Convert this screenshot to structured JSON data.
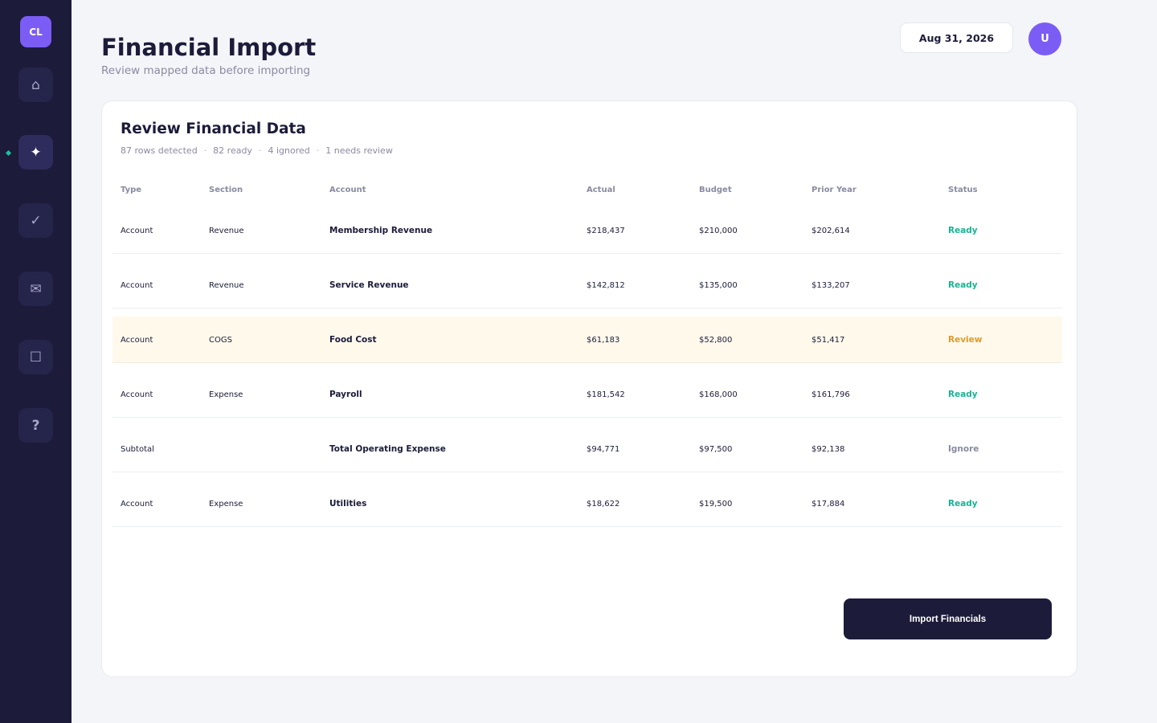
{
  "sidebar": {
    "logo_text": "CL",
    "items": [
      {
        "name": "home",
        "icon": "home-icon",
        "glyph": "⌂",
        "active": false
      },
      {
        "name": "import",
        "icon": "sparkle-icon",
        "glyph": "✦",
        "active": true
      },
      {
        "name": "tasks",
        "icon": "check-icon",
        "glyph": "✓",
        "active": false
      },
      {
        "name": "messages",
        "icon": "mail-icon",
        "glyph": "✉",
        "active": false
      },
      {
        "name": "documents",
        "icon": "square-icon",
        "glyph": "☐",
        "active": false
      },
      {
        "name": "help",
        "icon": "help-icon",
        "glyph": "?",
        "active": false
      }
    ]
  },
  "header": {
    "title": "Financial Import",
    "subtitle": "Review mapped data before importing",
    "date": "Aug 31, 2026",
    "avatar_initial": "U"
  },
  "card": {
    "title": "Review Financial Data",
    "summary": [
      "87 rows detected",
      "82 ready",
      "4 ignored",
      "1 needs review"
    ],
    "columns": [
      "Type",
      "Section",
      "Account",
      "Actual",
      "Budget",
      "Prior Year",
      "Status"
    ],
    "rows": [
      {
        "type": "Account",
        "section": "Revenue",
        "account": "Membership Revenue",
        "actual": "$218,437",
        "budget": "$210,000",
        "prior": "$202,614",
        "status": "Ready"
      },
      {
        "type": "Account",
        "section": "Revenue",
        "account": "Service Revenue",
        "actual": "$142,812",
        "budget": "$135,000",
        "prior": "$133,207",
        "status": "Ready"
      },
      {
        "type": "Account",
        "section": "COGS",
        "account": "Food Cost",
        "actual": "$61,183",
        "budget": "$52,800",
        "prior": "$51,417",
        "status": "Review"
      },
      {
        "type": "Account",
        "section": "Expense",
        "account": "Payroll",
        "actual": "$181,542",
        "budget": "$168,000",
        "prior": "$161,796",
        "status": "Ready"
      },
      {
        "type": "Subtotal",
        "section": "",
        "account": "Total Operating Expense",
        "actual": "$94,771",
        "budget": "$97,500",
        "prior": "$92,138",
        "status": "Ignore"
      },
      {
        "type": "Account",
        "section": "Expense",
        "account": "Utilities",
        "actual": "$18,622",
        "budget": "$19,500",
        "prior": "$17,884",
        "status": "Ready"
      }
    ],
    "import_button_label": "Import Financials"
  },
  "colors": {
    "sidebar_bg": "#1c1b3a",
    "accent": "#7b5cf5",
    "status_ready": "#19b394",
    "status_review": "#e09a2c",
    "status_ignore": "#8a8aa2"
  }
}
